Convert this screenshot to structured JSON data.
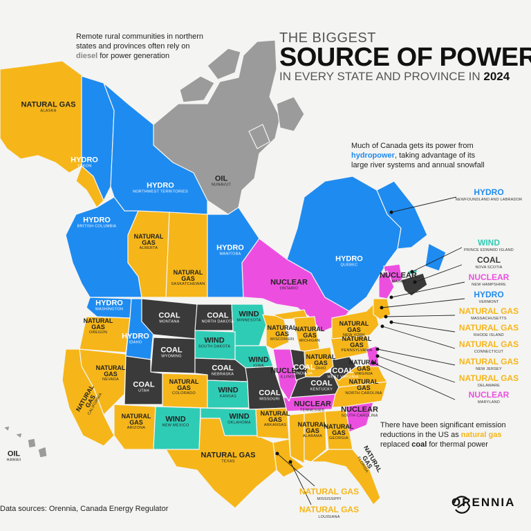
{
  "colors": {
    "natural_gas": "#F6B619",
    "hydro": "#1E8BF0",
    "coal": "#3A3A3A",
    "nuclear": "#EC4FE0",
    "wind": "#2FCCB5",
    "oil": "#9B9B9B",
    "background": "#F4F4F2"
  },
  "title": {
    "pre": "THE BIGGEST",
    "main": "SOURCE OF POWER",
    "sub": "IN EVERY STATE AND PROVINCE IN",
    "year": "2024"
  },
  "notes": {
    "diesel_a": "Remote rural communities in northern",
    "diesel_b": "states and provinces often rely on",
    "diesel_word": "diesel",
    "diesel_c": " for power generation",
    "hydro_a": "Much of Canada gets its power from",
    "hydro_word": "hydropower",
    "hydro_b": ", taking advantage of its",
    "hydro_c": "large river systems and annual snowfall",
    "emis_a": "There have been significant emission",
    "emis_b": "reductions in the US as ",
    "emis_gas": "natural gas",
    "emis_c": "replaced ",
    "emis_coal": "coal",
    "emis_d": " for thermal power"
  },
  "regions": [
    {
      "id": "alaska",
      "source": "NATURAL GAS",
      "name": "ALASKA",
      "fuel": "natural_gas"
    },
    {
      "id": "yukon",
      "source": "HYDRO",
      "name": "YUKON",
      "fuel": "hydro"
    },
    {
      "id": "nwt",
      "source": "HYDRO",
      "name": "NORTHWEST TERRITORIES",
      "fuel": "hydro"
    },
    {
      "id": "nunavut",
      "source": "OIL",
      "name": "NUNAVUT",
      "fuel": "oil"
    },
    {
      "id": "bc",
      "source": "HYDRO",
      "name": "BRITISH COLUMBIA",
      "fuel": "hydro"
    },
    {
      "id": "alberta",
      "source": "NATURAL GAS",
      "name": "ALBERTA",
      "fuel": "natural_gas"
    },
    {
      "id": "sask",
      "source": "NATURAL GAS",
      "name": "SASKATCHEWAN",
      "fuel": "natural_gas"
    },
    {
      "id": "manitoba",
      "source": "HYDRO",
      "name": "MANITOBA",
      "fuel": "hydro"
    },
    {
      "id": "ontario",
      "source": "NUCLEAR",
      "name": "ONTARIO",
      "fuel": "nuclear"
    },
    {
      "id": "quebec",
      "source": "HYDRO",
      "name": "QUEBEC",
      "fuel": "hydro"
    },
    {
      "id": "washington",
      "source": "HYDRO",
      "name": "WASHINGTON",
      "fuel": "hydro"
    },
    {
      "id": "oregon",
      "source": "NATURAL GAS",
      "name": "OREGON",
      "fuel": "natural_gas"
    },
    {
      "id": "idaho",
      "source": "HYDRO",
      "name": "IDAHO",
      "fuel": "hydro"
    },
    {
      "id": "montana",
      "source": "COAL",
      "name": "MONTANA",
      "fuel": "coal"
    },
    {
      "id": "north_dakota",
      "source": "COAL",
      "name": "NORTH DAKOTA",
      "fuel": "coal"
    },
    {
      "id": "minnesota",
      "source": "WIND",
      "name": "MINNESOTA",
      "fuel": "wind"
    },
    {
      "id": "wyoming",
      "source": "COAL",
      "name": "WYOMING",
      "fuel": "coal"
    },
    {
      "id": "south_dakota",
      "source": "WIND",
      "name": "SOUTH DAKOTA",
      "fuel": "wind"
    },
    {
      "id": "iowa",
      "source": "WIND",
      "name": "IOWA",
      "fuel": "wind"
    },
    {
      "id": "nevada",
      "source": "NATURAL GAS",
      "name": "NEVADA",
      "fuel": "natural_gas"
    },
    {
      "id": "california",
      "source": "NATURAL GAS",
      "name": "CALIFORNIA",
      "fuel": "natural_gas"
    },
    {
      "id": "utah",
      "source": "COAL",
      "name": "UTAH",
      "fuel": "coal"
    },
    {
      "id": "colorado",
      "source": "NATURAL GAS",
      "name": "COLORADO",
      "fuel": "natural_gas"
    },
    {
      "id": "nebraska",
      "source": "COAL",
      "name": "NEBRASKA",
      "fuel": "coal"
    },
    {
      "id": "kansas",
      "source": "WIND",
      "name": "KANSAS",
      "fuel": "wind"
    },
    {
      "id": "missouri",
      "source": "COAL",
      "name": "MISSOURI",
      "fuel": "coal"
    },
    {
      "id": "arizona",
      "source": "NATURAL GAS",
      "name": "ARIZONA",
      "fuel": "natural_gas"
    },
    {
      "id": "new_mexico",
      "source": "WIND",
      "name": "NEW MEXICO",
      "fuel": "wind"
    },
    {
      "id": "oklahoma",
      "source": "WIND",
      "name": "OKLAHOMA",
      "fuel": "wind"
    },
    {
      "id": "texas",
      "source": "NATURAL GAS",
      "name": "TEXAS",
      "fuel": "natural_gas"
    },
    {
      "id": "arkansas",
      "source": "NATURAL GAS",
      "name": "ARKANSAS",
      "fuel": "natural_gas"
    },
    {
      "id": "wisconsin",
      "source": "NATURAL GAS",
      "name": "WISCONSIN",
      "fuel": "natural_gas"
    },
    {
      "id": "michigan",
      "source": "NATURAL GAS",
      "name": "MICHIGAN",
      "fuel": "natural_gas"
    },
    {
      "id": "illinois",
      "source": "NUCLEAR",
      "name": "ILLINOIS",
      "fuel": "nuclear"
    },
    {
      "id": "indiana",
      "source": "COAL",
      "name": "INDIANA",
      "fuel": "coal"
    },
    {
      "id": "ohio",
      "source": "NATURAL GAS",
      "name": "OHIO",
      "fuel": "natural_gas"
    },
    {
      "id": "kentucky",
      "source": "COAL",
      "name": "KENTUCKY",
      "fuel": "coal"
    },
    {
      "id": "west_virginia",
      "source": "COAL",
      "name": "WEST VIRGINIA",
      "fuel": "coal"
    },
    {
      "id": "tennessee",
      "source": "NUCLEAR",
      "name": "TENNESSEE",
      "fuel": "nuclear"
    },
    {
      "id": "alabama",
      "source": "NATURAL GAS",
      "name": "ALABAMA",
      "fuel": "natural_gas"
    },
    {
      "id": "georgia",
      "source": "NATURAL GAS",
      "name": "GEORGIA",
      "fuel": "natural_gas"
    },
    {
      "id": "florida",
      "source": "NATURAL GAS",
      "name": "FLORIDA",
      "fuel": "natural_gas"
    },
    {
      "id": "south_carolina",
      "source": "NUCLEAR",
      "name": "SOUTH CAROLINA",
      "fuel": "nuclear"
    },
    {
      "id": "north_carolina",
      "source": "NATURAL GAS",
      "name": "NORTH CAROLINA",
      "fuel": "natural_gas"
    },
    {
      "id": "virginia",
      "source": "NATURAL GAS",
      "name": "VIRGINIA",
      "fuel": "natural_gas"
    },
    {
      "id": "pennsylvania",
      "source": "NATURAL GAS",
      "name": "PENNSYLVANIA",
      "fuel": "natural_gas"
    },
    {
      "id": "new_york",
      "source": "NATURAL GAS",
      "name": "NEW YORK",
      "fuel": "natural_gas"
    },
    {
      "id": "maine",
      "source": "NUCLEAR",
      "name": "MAINE",
      "fuel": "nuclear"
    },
    {
      "id": "hawaii",
      "source": "OIL",
      "name": "HAWAII",
      "fuel": "oil"
    }
  ],
  "callouts": [
    {
      "source": "HYDRO",
      "name": "NEWFOUNDLAND AND LABRADOR",
      "fuel": "hydro"
    },
    {
      "source": "WIND",
      "name": "PRINCE EDWARD ISLAND",
      "fuel": "wind"
    },
    {
      "source": "COAL",
      "name": "NOVA SCOTIA",
      "fuel": "coal"
    },
    {
      "source": "NUCLEAR",
      "name": "NEW HAMPSHIRE",
      "fuel": "nuclear"
    },
    {
      "source": "HYDRO",
      "name": "VERMONT",
      "fuel": "hydro"
    },
    {
      "source": "NATURAL GAS",
      "name": "MASSACHUSETTS",
      "fuel": "natural_gas"
    },
    {
      "source": "NATURAL GAS",
      "name": "RHODE ISLAND",
      "fuel": "natural_gas"
    },
    {
      "source": "NATURAL GAS",
      "name": "CONNECTICUT",
      "fuel": "natural_gas"
    },
    {
      "source": "NATURAL GAS",
      "name": "NEW JERSEY",
      "fuel": "natural_gas"
    },
    {
      "source": "NATURAL GAS",
      "name": "DELAWARE",
      "fuel": "natural_gas"
    },
    {
      "source": "NUCLEAR",
      "name": "MARYLAND",
      "fuel": "nuclear"
    }
  ],
  "bottom_callouts": [
    {
      "source": "NATURAL GAS",
      "name": "MISSISSIPPI",
      "fuel": "natural_gas"
    },
    {
      "source": "NATURAL GAS",
      "name": "LOUISIANA",
      "fuel": "natural_gas"
    }
  ],
  "footer": {
    "source": "Data sources: Orennia, Canada Energy Regulator",
    "logo": "ORENNIA"
  }
}
